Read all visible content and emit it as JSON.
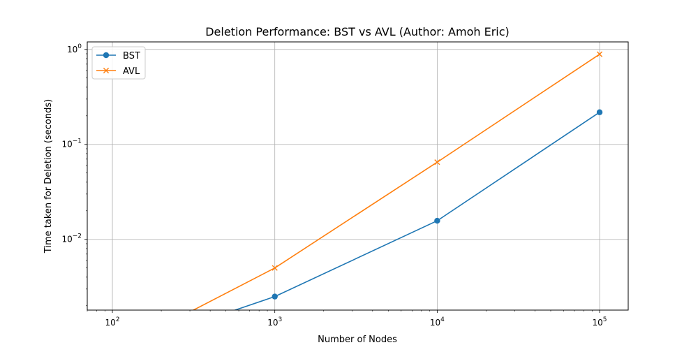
{
  "chart_data": {
    "type": "line",
    "title": "Deletion Performance: BST vs AVL (Author: Amoh Eric)",
    "xlabel": "Number of Nodes",
    "ylabel": "Time taken for Deletion (seconds)",
    "x_scale": "log",
    "y_scale": "log",
    "xlim": [
      70,
      150000
    ],
    "ylim": [
      0.0018,
      1.2
    ],
    "grid": true,
    "legend_position": "top-left",
    "x_ticks": [
      {
        "base": "10",
        "exp": "2",
        "value": 100
      },
      {
        "base": "10",
        "exp": "3",
        "value": 1000
      },
      {
        "base": "10",
        "exp": "4",
        "value": 10000
      },
      {
        "base": "10",
        "exp": "5",
        "value": 100000
      }
    ],
    "y_ticks": [
      {
        "base": "10",
        "exp": "−2",
        "value": 0.01
      },
      {
        "base": "10",
        "exp": "−1",
        "value": 0.1
      },
      {
        "base": "10",
        "exp": "0",
        "value": 1
      }
    ],
    "x": [
      100,
      1000,
      10000,
      100000
    ],
    "series": [
      {
        "name": "BST",
        "color": "#1f77b4",
        "marker": "circle",
        "values": [
          0.0,
          0.0025,
          0.0157,
          0.218
        ]
      },
      {
        "name": "AVL",
        "color": "#ff7f0e",
        "marker": "x",
        "values": [
          0.0,
          0.005,
          0.065,
          0.89
        ]
      }
    ]
  }
}
